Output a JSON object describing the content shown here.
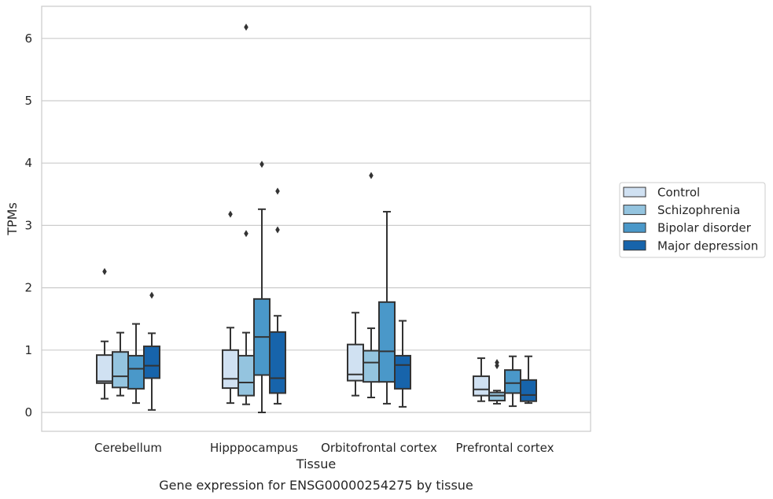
{
  "caption": "Gene expression for ENSG00000254275 by tissue",
  "chart_data": {
    "type": "boxplot",
    "xlabel": "Tissue",
    "ylabel": "TPMs",
    "ylim": [
      -0.3,
      6.5
    ],
    "yticks": [
      0,
      1,
      2,
      3,
      4,
      5,
      6
    ],
    "categories": [
      "Cerebellum",
      "Hipppocampus",
      "Orbitofrontal cortex",
      "Prefrontal cortex"
    ],
    "grid": "horizontal",
    "legend_position": "right",
    "series": [
      {
        "name": "Control",
        "color": "#d0e1f2",
        "boxes": [
          {
            "whislo": 0.22,
            "q1": 0.47,
            "med": 0.5,
            "q3": 0.92,
            "whishi": 1.14,
            "fliers": [
              2.26
            ]
          },
          {
            "whislo": 0.15,
            "q1": 0.39,
            "med": 0.54,
            "q3": 1.0,
            "whishi": 1.36,
            "fliers": [
              3.18
            ]
          },
          {
            "whislo": 0.27,
            "q1": 0.51,
            "med": 0.61,
            "q3": 1.09,
            "whishi": 1.6,
            "fliers": []
          },
          {
            "whislo": 0.18,
            "q1": 0.27,
            "med": 0.37,
            "q3": 0.58,
            "whishi": 0.87,
            "fliers": []
          }
        ]
      },
      {
        "name": "Schizophrenia",
        "color": "#94c4df",
        "boxes": [
          {
            "whislo": 0.27,
            "q1": 0.4,
            "med": 0.58,
            "q3": 0.97,
            "whishi": 1.28,
            "fliers": []
          },
          {
            "whislo": 0.13,
            "q1": 0.27,
            "med": 0.48,
            "q3": 0.91,
            "whishi": 1.28,
            "fliers": [
              2.87,
              6.18
            ]
          },
          {
            "whislo": 0.24,
            "q1": 0.49,
            "med": 0.8,
            "q3": 0.99,
            "whishi": 1.35,
            "fliers": [
              3.8
            ]
          },
          {
            "whislo": 0.14,
            "q1": 0.19,
            "med": 0.27,
            "q3": 0.32,
            "whishi": 0.35,
            "fliers": [
              0.75,
              0.8
            ]
          }
        ]
      },
      {
        "name": "Bipolar disorder",
        "color": "#4a98c9",
        "boxes": [
          {
            "whislo": 0.15,
            "q1": 0.38,
            "med": 0.7,
            "q3": 0.91,
            "whishi": 1.42,
            "fliers": []
          },
          {
            "whislo": 0.0,
            "q1": 0.6,
            "med": 1.21,
            "q3": 1.82,
            "whishi": 3.26,
            "fliers": [
              3.98
            ]
          },
          {
            "whislo": 0.14,
            "q1": 0.49,
            "med": 0.98,
            "q3": 1.77,
            "whishi": 3.22,
            "fliers": []
          },
          {
            "whislo": 0.1,
            "q1": 0.31,
            "med": 0.47,
            "q3": 0.68,
            "whishi": 0.9,
            "fliers": []
          }
        ]
      },
      {
        "name": "Major depression",
        "color": "#1764ab",
        "boxes": [
          {
            "whislo": 0.04,
            "q1": 0.55,
            "med": 0.75,
            "q3": 1.06,
            "whishi": 1.27,
            "fliers": [
              1.88
            ]
          },
          {
            "whislo": 0.14,
            "q1": 0.31,
            "med": 0.55,
            "q3": 1.29,
            "whishi": 1.55,
            "fliers": [
              2.93,
              3.55
            ]
          },
          {
            "whislo": 0.09,
            "q1": 0.38,
            "med": 0.76,
            "q3": 0.91,
            "whishi": 1.47,
            "fliers": []
          },
          {
            "whislo": 0.15,
            "q1": 0.18,
            "med": 0.28,
            "q3": 0.52,
            "whishi": 0.9,
            "fliers": []
          }
        ]
      }
    ]
  }
}
